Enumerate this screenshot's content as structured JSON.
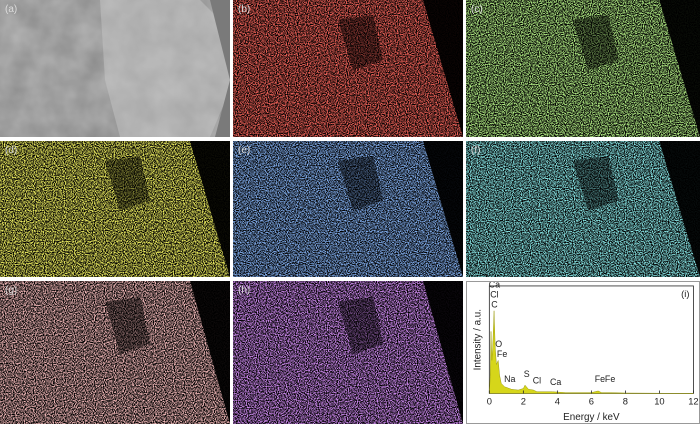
{
  "panels": [
    {
      "label": "(a)",
      "kind": "SEM image",
      "color": "#9a9a9a"
    },
    {
      "label": "(b)",
      "kind": "element map",
      "color": "#e0201a"
    },
    {
      "label": "(c)",
      "kind": "element map",
      "color": "#6fd13a"
    },
    {
      "label": "(d)",
      "kind": "element map",
      "color": "#d8d81e"
    },
    {
      "label": "(e)",
      "kind": "element map",
      "color": "#3a6fe0"
    },
    {
      "label": "(f)",
      "kind": "element map",
      "color": "#3fc8c8"
    },
    {
      "label": "(g)",
      "kind": "element map",
      "color": "#e07a7a"
    },
    {
      "label": "(h)",
      "kind": "element map",
      "color": "#9a3fd8"
    }
  ],
  "chart_data": {
    "type": "area",
    "panel_label": "(i)",
    "xlabel": "Energy / keV",
    "ylabel": "Intensity / a.u.",
    "xlim": [
      0,
      12
    ],
    "xticks": [
      "0",
      "2",
      "4",
      "6",
      "8",
      "10",
      "12"
    ],
    "color": "#d6d61a",
    "x": [
      0,
      0.05,
      0.1,
      0.15,
      0.2,
      0.28,
      0.35,
      0.42,
      0.52,
      0.6,
      0.7,
      0.9,
      1.04,
      1.3,
      1.7,
      2.0,
      2.1,
      2.3,
      2.6,
      2.8,
      3.7,
      4.5,
      6.0,
      6.4,
      6.6,
      7.1,
      8,
      12
    ],
    "y": [
      0,
      20,
      75,
      40,
      55,
      100,
      55,
      35,
      40,
      22,
      12,
      8,
      7,
      5,
      4,
      6,
      10,
      5,
      4,
      2,
      2,
      1,
      1,
      3,
      1,
      1,
      0.5,
      0
    ],
    "peak_labels": [
      {
        "text": "Ca",
        "x": 0.3,
        "y": 128
      },
      {
        "text": "Cl",
        "x": 0.3,
        "y": 116
      },
      {
        "text": "C",
        "x": 0.3,
        "y": 104
      },
      {
        "text": "O",
        "x": 0.55,
        "y": 56
      },
      {
        "text": "Fe",
        "x": 0.75,
        "y": 44
      },
      {
        "text": "Na",
        "x": 1.2,
        "y": 14
      },
      {
        "text": "S",
        "x": 2.2,
        "y": 20
      },
      {
        "text": "Cl",
        "x": 2.8,
        "y": 12
      },
      {
        "text": "Ca",
        "x": 3.9,
        "y": 10
      },
      {
        "text": "Fe",
        "x": 6.5,
        "y": 14
      },
      {
        "text": "Fe",
        "x": 7.1,
        "y": 14
      }
    ]
  }
}
